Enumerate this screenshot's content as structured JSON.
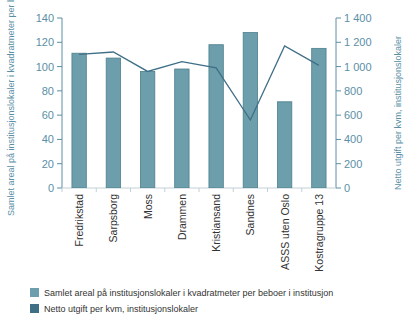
{
  "chart_data": {
    "type": "bar",
    "categories": [
      "Fredrikstad",
      "Sarpsborg",
      "Moss",
      "Drammen",
      "Kristiansand",
      "Sandnes",
      "ASSS uten Oslo",
      "Kostragruppe 13"
    ],
    "ylabel": "Samlet areal på institusjonslokaler i kvadratmeter per beboer",
    "y2label": "Netto utgift per kvm, institusjonslokaler",
    "series": [
      {
        "name": "Samlet areal på institusjonslokaler i kvadratmeter per beboer i institusjon",
        "type": "bar",
        "color": "#6d9eab",
        "values": [
          111,
          107,
          96,
          98,
          118,
          128,
          71,
          115
        ]
      },
      {
        "name": "Netto utgift per kvm, institusjonslokaler",
        "type": "line",
        "axis": "y2",
        "color": "#3f6f87",
        "values": [
          1100,
          1120,
          960,
          1040,
          990,
          560,
          1170,
          1010
        ]
      }
    ],
    "ylim": [
      0,
      140
    ],
    "yticks": [
      0,
      20,
      40,
      60,
      80,
      100,
      120,
      140
    ],
    "y2lim": [
      0,
      1400
    ],
    "y2ticks": [
      0,
      200,
      400,
      600,
      800,
      {
        "value": 1000,
        "label": "1 000"
      },
      {
        "value": 1200,
        "label": "1 200"
      },
      {
        "value": 1400,
        "label": "1 400"
      }
    ],
    "grid": false,
    "legend": "bottom"
  }
}
